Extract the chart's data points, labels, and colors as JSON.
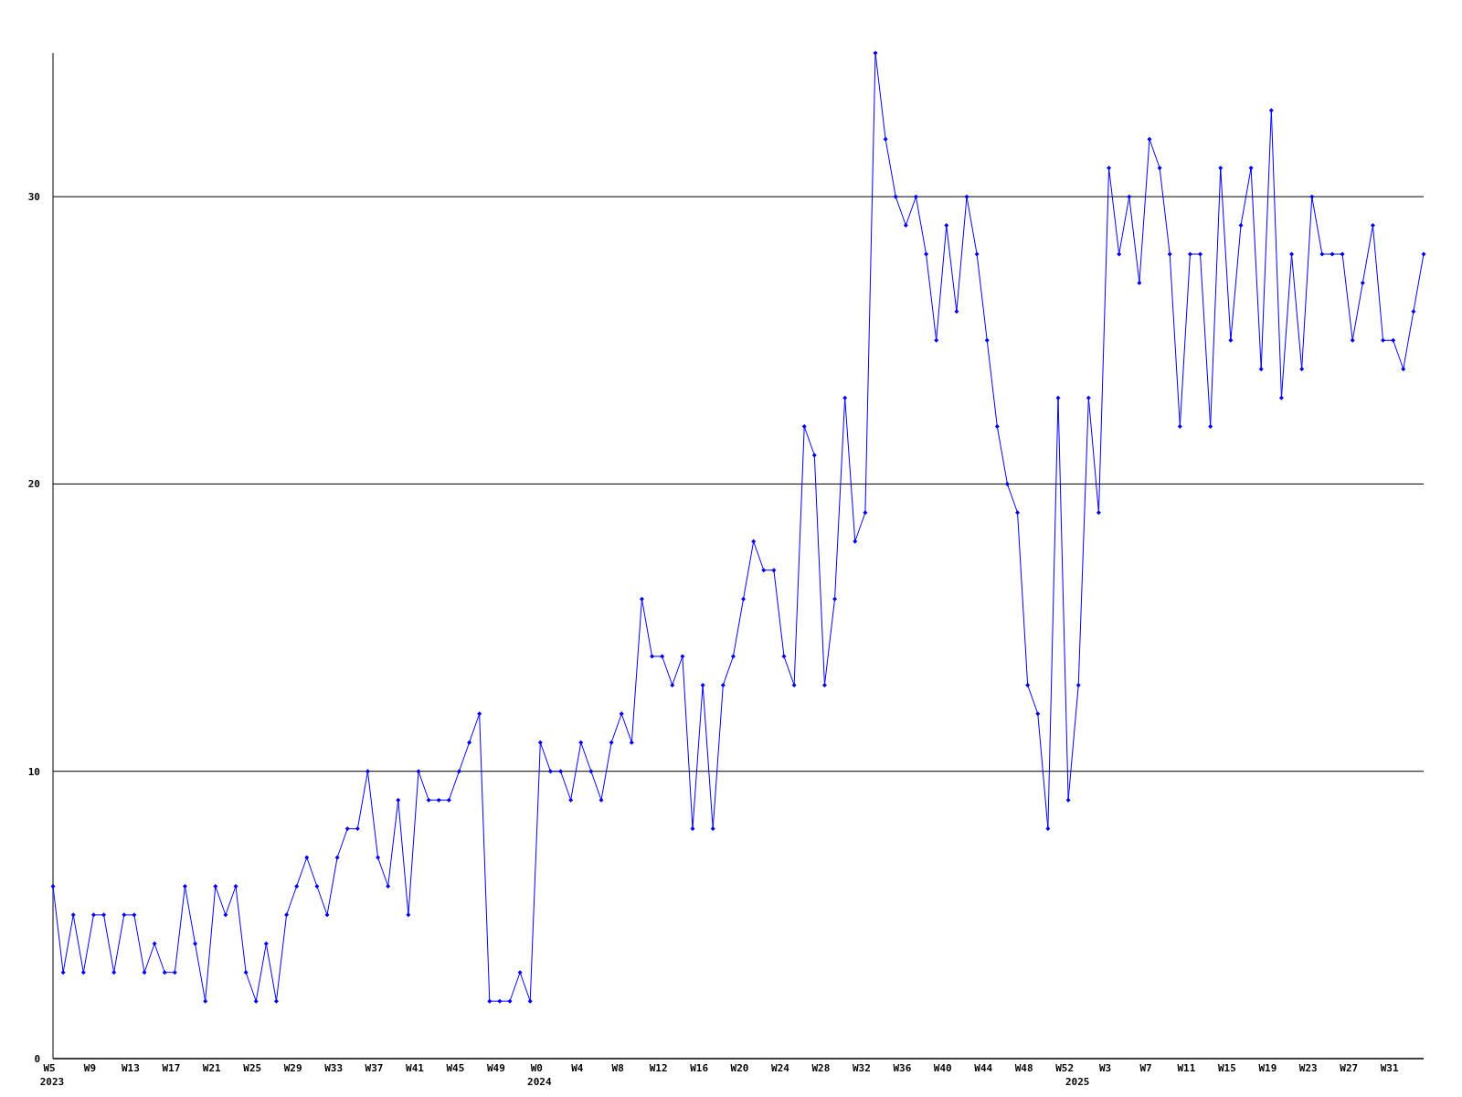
{
  "chart_data": {
    "type": "line",
    "categories": [
      "W5\n2023",
      null,
      null,
      null,
      "W9",
      null,
      null,
      null,
      "W13",
      null,
      null,
      null,
      "W17",
      null,
      null,
      null,
      "W21",
      null,
      null,
      null,
      "W25",
      null,
      null,
      null,
      "W29",
      null,
      null,
      null,
      "W33",
      null,
      null,
      null,
      "W37",
      null,
      null,
      null,
      "W41",
      null,
      null,
      null,
      "W45",
      null,
      null,
      null,
      "W49",
      null,
      null,
      null,
      "W0\n2024",
      null,
      null,
      null,
      "W4",
      null,
      null,
      null,
      "W8",
      null,
      null,
      null,
      "W12",
      null,
      null,
      null,
      "W16",
      null,
      null,
      null,
      "W20",
      null,
      null,
      null,
      "W24",
      null,
      null,
      null,
      "W28",
      null,
      null,
      null,
      "W32",
      null,
      null,
      null,
      "W36",
      null,
      null,
      null,
      "W40",
      null,
      null,
      null,
      "W44",
      null,
      null,
      null,
      "W48",
      null,
      null,
      null,
      "W52",
      "\n2025",
      null,
      null,
      "W3",
      null,
      null,
      null,
      "W7",
      null,
      null,
      null,
      "W11",
      null,
      null,
      null,
      "W15",
      null,
      null,
      null,
      "W19",
      null,
      null,
      null,
      "W23",
      null,
      null,
      null,
      "W27",
      null,
      null,
      null,
      "W31",
      null,
      null,
      null
    ],
    "series": [
      {
        "color": "#0000ff",
        "values": [
          6,
          3,
          5,
          3,
          5,
          5,
          3,
          5,
          5,
          3,
          4,
          3,
          3,
          6,
          4,
          2,
          6,
          5,
          6,
          3,
          2,
          4,
          2,
          5,
          6,
          7,
          6,
          5,
          7,
          8,
          8,
          10,
          7,
          6,
          9,
          5,
          10,
          9,
          9,
          9,
          10,
          11,
          12,
          2,
          2,
          2,
          3,
          2,
          11,
          10,
          10,
          9,
          11,
          10,
          9,
          11,
          12,
          11,
          16,
          14,
          14,
          13,
          14,
          8,
          13,
          8,
          13,
          14,
          16,
          18,
          17,
          17,
          14,
          13,
          22,
          21,
          13,
          16,
          23,
          18,
          19,
          35,
          32,
          30,
          29,
          30,
          28,
          25,
          29,
          26,
          30,
          28,
          25,
          22,
          20,
          19,
          13,
          12,
          8,
          23,
          9,
          13,
          23,
          19,
          31,
          28,
          30,
          27,
          32,
          31,
          28,
          22,
          28,
          28,
          22,
          31,
          25,
          29,
          31,
          24,
          33,
          23,
          28,
          24,
          30,
          28,
          28,
          28,
          25,
          27,
          29,
          25,
          25,
          24,
          26,
          28
        ]
      }
    ],
    "ylim": [
      0,
      35
    ],
    "yticks": [
      0,
      10,
      20,
      30
    ],
    "grid": "y",
    "marker": "diamond",
    "line_style": "solid"
  }
}
